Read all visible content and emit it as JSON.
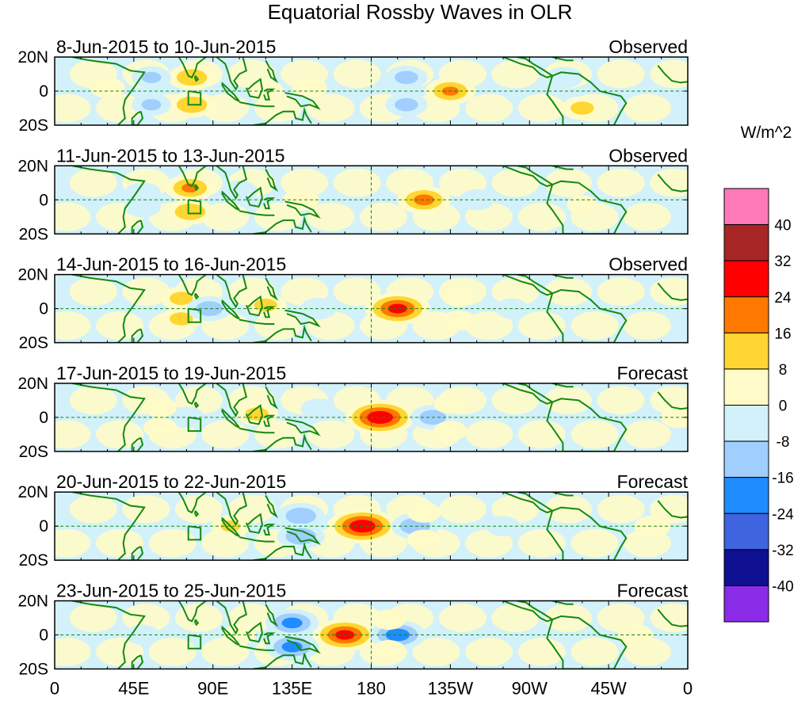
{
  "chart_data": {
    "type": "heatmap",
    "title": "Equatorial Rossby Waves in OLR",
    "x_ticks": [
      "0",
      "45E",
      "90E",
      "135E",
      "180",
      "135W",
      "90W",
      "45W",
      "0"
    ],
    "x_tick_lon": [
      0,
      45,
      90,
      135,
      180,
      225,
      270,
      315,
      360
    ],
    "xlim": [
      0,
      360
    ],
    "y_ticks": [
      "20N",
      "0",
      "20S"
    ],
    "y_tick_lat": [
      20,
      0,
      -20
    ],
    "ylim": [
      -20,
      20
    ],
    "colorbar": {
      "title": "W/m^2",
      "labels": [
        "40",
        "32",
        "24",
        "16",
        "8",
        "0",
        "-8",
        "-16",
        "-24",
        "-32",
        "-40"
      ],
      "colors": [
        "#ff78b8",
        "#a82626",
        "#ff0000",
        "#ff7800",
        "#ffd631",
        "#fffbc8",
        "#d2f1fa",
        "#a0ceff",
        "#1f8cff",
        "#3f64e0",
        "#0f0f92",
        "#8a2be8"
      ]
    },
    "panels": [
      {
        "period": "8-Jun-2015 to 10-Jun-2015",
        "kind": "Observed",
        "anomalies": [
          {
            "lon": 78,
            "lat": 8,
            "v": 18
          },
          {
            "lon": 78,
            "lat": -8,
            "v": 18
          },
          {
            "lon": 55,
            "lat": 8,
            "v": -12
          },
          {
            "lon": 55,
            "lat": -8,
            "v": -12
          },
          {
            "lon": 30,
            "lat": 2,
            "v": 9
          },
          {
            "lon": 120,
            "lat": 0,
            "v": 10
          },
          {
            "lon": 145,
            "lat": 2,
            "v": 9
          },
          {
            "lon": 200,
            "lat": 8,
            "v": -14
          },
          {
            "lon": 200,
            "lat": -8,
            "v": -14
          },
          {
            "lon": 225,
            "lat": 0,
            "v": 20
          },
          {
            "lon": 300,
            "lat": -10,
            "v": 14
          },
          {
            "lon": 290,
            "lat": 8,
            "v": -10
          }
        ]
      },
      {
        "period": "11-Jun-2015 to 13-Jun-2015",
        "kind": "Observed",
        "anomalies": [
          {
            "lon": 77,
            "lat": 7,
            "v": 20
          },
          {
            "lon": 77,
            "lat": -7,
            "v": 18
          },
          {
            "lon": 50,
            "lat": 4,
            "v": -10
          },
          {
            "lon": 50,
            "lat": -4,
            "v": -10
          },
          {
            "lon": 105,
            "lat": 5,
            "v": -10
          },
          {
            "lon": 140,
            "lat": 0,
            "v": 10
          },
          {
            "lon": 210,
            "lat": 0,
            "v": 22
          },
          {
            "lon": 240,
            "lat": 0,
            "v": -9
          },
          {
            "lon": 300,
            "lat": -3,
            "v": 6
          }
        ]
      },
      {
        "period": "14-Jun-2015 to 16-Jun-2015",
        "kind": "Observed",
        "anomalies": [
          {
            "lon": 72,
            "lat": 6,
            "v": 14
          },
          {
            "lon": 72,
            "lat": -6,
            "v": 14
          },
          {
            "lon": 88,
            "lat": 0,
            "v": -16
          },
          {
            "lon": 120,
            "lat": 2,
            "v": 14
          },
          {
            "lon": 150,
            "lat": 0,
            "v": -10
          },
          {
            "lon": 195,
            "lat": 0,
            "v": 30
          },
          {
            "lon": 230,
            "lat": 7,
            "v": 8
          },
          {
            "lon": 230,
            "lat": -7,
            "v": 8
          },
          {
            "lon": 260,
            "lat": 0,
            "v": -8
          }
        ]
      },
      {
        "period": "17-Jun-2015 to 19-Jun-2015",
        "kind": "Forecast",
        "anomalies": [
          {
            "lon": 115,
            "lat": 2,
            "v": 14
          },
          {
            "lon": 75,
            "lat": 0,
            "v": -10
          },
          {
            "lon": 60,
            "lat": 6,
            "v": 8
          },
          {
            "lon": 60,
            "lat": -6,
            "v": 8
          },
          {
            "lon": 185,
            "lat": 0,
            "v": 34
          },
          {
            "lon": 215,
            "lat": 0,
            "v": -16
          },
          {
            "lon": 225,
            "lat": 8,
            "v": 8
          },
          {
            "lon": 225,
            "lat": -8,
            "v": 8
          },
          {
            "lon": 150,
            "lat": 5,
            "v": -9
          },
          {
            "lon": 355,
            "lat": 0,
            "v": 10
          }
        ]
      },
      {
        "period": "20-Jun-2015 to 22-Jun-2015",
        "kind": "Forecast",
        "anomalies": [
          {
            "lon": 175,
            "lat": 0,
            "v": 34
          },
          {
            "lon": 205,
            "lat": 0,
            "v": -18
          },
          {
            "lon": 140,
            "lat": 6,
            "v": -18
          },
          {
            "lon": 140,
            "lat": -6,
            "v": -18
          },
          {
            "lon": 100,
            "lat": 0,
            "v": 12
          },
          {
            "lon": 210,
            "lat": 8,
            "v": 8
          },
          {
            "lon": 210,
            "lat": -8,
            "v": 8
          },
          {
            "lon": 340,
            "lat": 0,
            "v": 10
          },
          {
            "lon": 255,
            "lat": 0,
            "v": -8
          }
        ]
      },
      {
        "period": "23-Jun-2015 to 25-Jun-2015",
        "kind": "Forecast",
        "anomalies": [
          {
            "lon": 165,
            "lat": 0,
            "v": 30
          },
          {
            "lon": 195,
            "lat": 0,
            "v": -24
          },
          {
            "lon": 135,
            "lat": 7,
            "v": -22
          },
          {
            "lon": 135,
            "lat": -7,
            "v": -22
          },
          {
            "lon": 105,
            "lat": 0,
            "v": 8
          },
          {
            "lon": 190,
            "lat": 9,
            "v": 8
          },
          {
            "lon": 190,
            "lat": -9,
            "v": 8
          },
          {
            "lon": 330,
            "lat": 0,
            "v": 10
          },
          {
            "lon": 50,
            "lat": 0,
            "v": -8
          }
        ]
      }
    ]
  }
}
